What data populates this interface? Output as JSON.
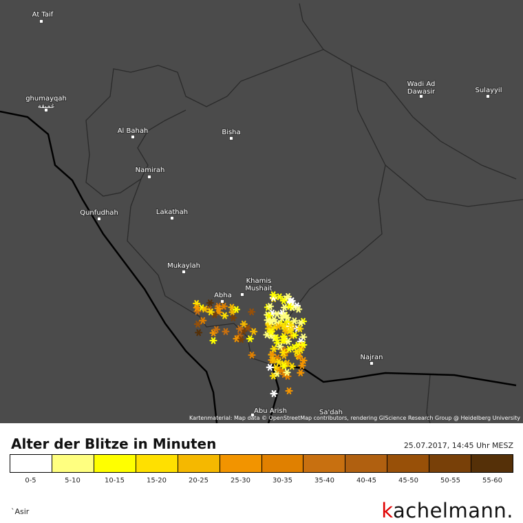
{
  "map": {
    "cities": [
      {
        "lines": [
          "At Taif"
        ]
      },
      {
        "lines": [
          "ghumayqah",
          "غميقة"
        ]
      },
      {
        "lines": [
          "Wadi Ad",
          "Dawasir"
        ]
      },
      {
        "lines": [
          "Sulayyil"
        ]
      },
      {
        "lines": [
          "Al Bahah"
        ]
      },
      {
        "lines": [
          "Bisha"
        ]
      },
      {
        "lines": [
          "Namirah"
        ]
      },
      {
        "lines": [
          "Qunfudhah"
        ]
      },
      {
        "lines": [
          "Lakathah"
        ]
      },
      {
        "lines": [
          "Mukaylah"
        ]
      },
      {
        "lines": [
          "Khamis",
          "Mushait"
        ]
      },
      {
        "lines": [
          "Abha"
        ]
      },
      {
        "lines": [
          "Najran"
        ]
      },
      {
        "lines": [
          "Abu Arish"
        ]
      },
      {
        "lines": [
          "Sa'dah"
        ]
      }
    ],
    "attribution": "Kartenmaterial: Map data © OpenStreetMap contributors, rendering GIScience Research Group @ Heidelberg University"
  },
  "legend": {
    "title": "Alter der Blitze in Minuten",
    "timestamp": "25.07.2017, 14:45 Uhr MESZ",
    "bins": [
      {
        "label": "0-5",
        "color": "#ffffff"
      },
      {
        "label": "5-10",
        "color": "#ffff80"
      },
      {
        "label": "10-15",
        "color": "#ffff00"
      },
      {
        "label": "15-20",
        "color": "#ffe000"
      },
      {
        "label": "20-25",
        "color": "#f5b800"
      },
      {
        "label": "25-30",
        "color": "#f29400"
      },
      {
        "label": "30-35",
        "color": "#e08000"
      },
      {
        "label": "35-40",
        "color": "#c87010"
      },
      {
        "label": "40-45",
        "color": "#b06010"
      },
      {
        "label": "45-50",
        "color": "#985008"
      },
      {
        "label": "50-55",
        "color": "#784008"
      },
      {
        "label": "55-60",
        "color": "#553008"
      }
    ]
  },
  "region": "`Asir",
  "logo": {
    "accent": "k",
    "rest": "achelmann."
  }
}
